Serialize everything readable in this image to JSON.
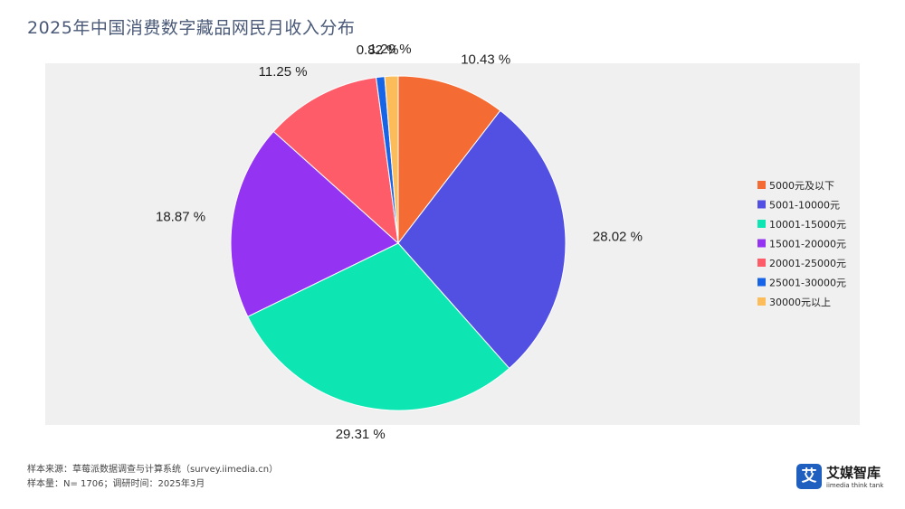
{
  "title": "2025年中国消费数字藏品网民月收入分布",
  "chart_data": {
    "type": "pie",
    "categories": [
      "5000元及以下",
      "5001-10000元",
      "10001-15000元",
      "15001-20000元",
      "20001-25000元",
      "25001-30000元",
      "30000元以上"
    ],
    "values": [
      10.43,
      28.02,
      29.31,
      18.87,
      11.25,
      0.82,
      1.29
    ],
    "value_labels": [
      "10.43 %",
      "28.02 %",
      "29.31 %",
      "18.87 %",
      "11.25 %",
      "0.82 %",
      "1.29 %"
    ],
    "colors": [
      "#f46b34",
      "#5150e3",
      "#0de6b2",
      "#9433f2",
      "#ff5c6a",
      "#1864e6",
      "#fdbc5a"
    ],
    "start": "12 o'clock",
    "direction": "clockwise",
    "legend_position": "right"
  },
  "footer": {
    "source": "样本来源：草莓派数据调查与计算系统（survey.iimedia.cn）",
    "sample": "样本量：N= 1706；调研时间：2025年3月"
  },
  "brand": {
    "mark": "艾",
    "name": "艾媒智库",
    "sub": "iimedia think tank"
  }
}
